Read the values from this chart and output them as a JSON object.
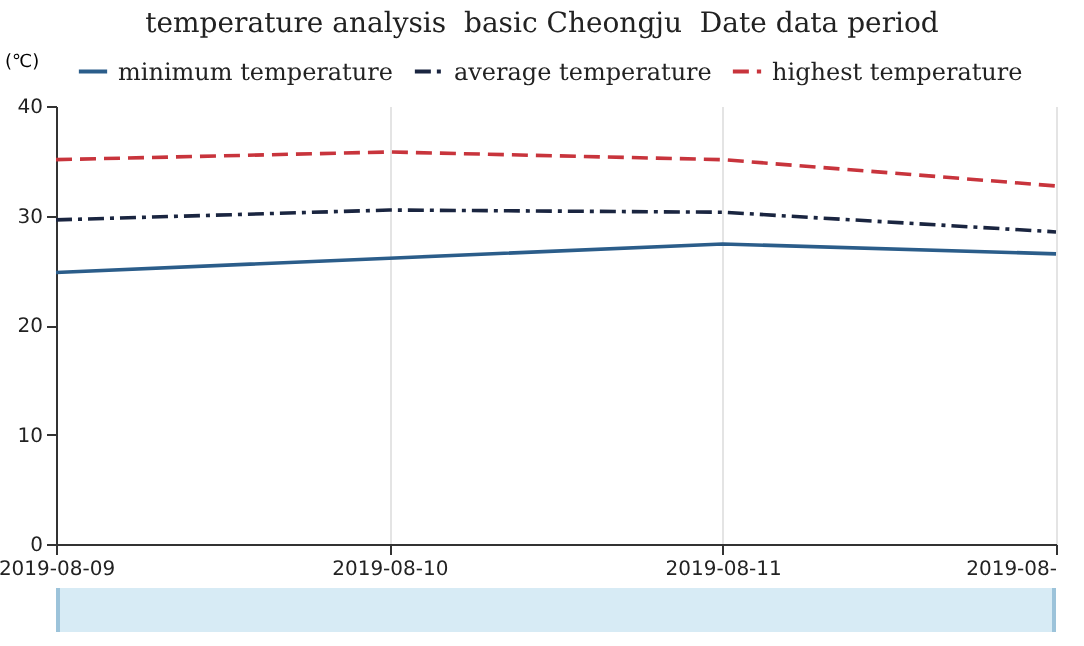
{
  "chart_data": {
    "type": "line",
    "title": "temperature analysis  basic Cheongju  Date data period",
    "ylabel": "(℃)",
    "categories": [
      "2019-08-09",
      "2019-08-10",
      "2019-08-11",
      "2019-08-"
    ],
    "series": [
      {
        "name": "minimum temperature",
        "color": "#2b5d8a",
        "line_style": "solid",
        "values": [
          24.8,
          26.1,
          27.4,
          26.5
        ]
      },
      {
        "name": "average temperature",
        "color": "#1a2540",
        "line_style": "dashdot",
        "values": [
          29.6,
          30.5,
          30.3,
          28.5
        ]
      },
      {
        "name": "highest temperature",
        "color": "#c8343c",
        "line_style": "dashed",
        "values": [
          35.1,
          35.8,
          35.1,
          32.7
        ]
      }
    ],
    "ylim": [
      0,
      40
    ],
    "yticks": [
      0,
      10,
      20,
      30,
      40
    ],
    "grid": "x",
    "legend": "top left",
    "marker": "none"
  }
}
